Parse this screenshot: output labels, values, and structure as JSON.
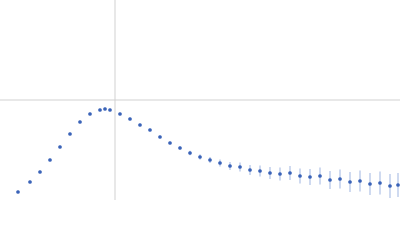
{
  "chart_data": {
    "type": "scatter",
    "xlim": [
      0,
      400
    ],
    "ylim": [
      0,
      200
    ],
    "xticks": [
      115
    ],
    "yticks": [
      100
    ],
    "grid": true,
    "series": [
      {
        "color": "#3a63b8",
        "x": [
          18,
          30,
          40,
          50,
          60,
          70,
          80,
          90,
          100,
          105,
          110,
          120,
          130,
          140,
          150,
          160,
          170,
          180,
          190,
          200,
          210,
          220,
          230,
          240,
          250,
          260,
          270,
          280,
          290,
          300,
          310,
          320,
          330,
          340,
          350,
          360,
          370,
          380,
          390,
          398
        ],
        "values": [
          8,
          18,
          28,
          40,
          53,
          66,
          78,
          86,
          90,
          91,
          90,
          86,
          81,
          75,
          70,
          63,
          57,
          52,
          47,
          43,
          40,
          37,
          34,
          33,
          30,
          29,
          27,
          26,
          27,
          24,
          23,
          24,
          20,
          21,
          18,
          19,
          16,
          17,
          14,
          15
        ],
        "errors": [
          0.5,
          0.5,
          0.5,
          0.5,
          0.5,
          0.5,
          0.5,
          0.5,
          0.6,
          0.6,
          0.6,
          0.7,
          0.8,
          0.9,
          1,
          1.2,
          1.5,
          1.8,
          2.2,
          2.6,
          3,
          3.5,
          4,
          4.5,
          5,
          5.5,
          6,
          6.5,
          7,
          7.5,
          8,
          8.5,
          9,
          9.5,
          10,
          10.5,
          11,
          11.5,
          12,
          12
        ]
      }
    ]
  }
}
